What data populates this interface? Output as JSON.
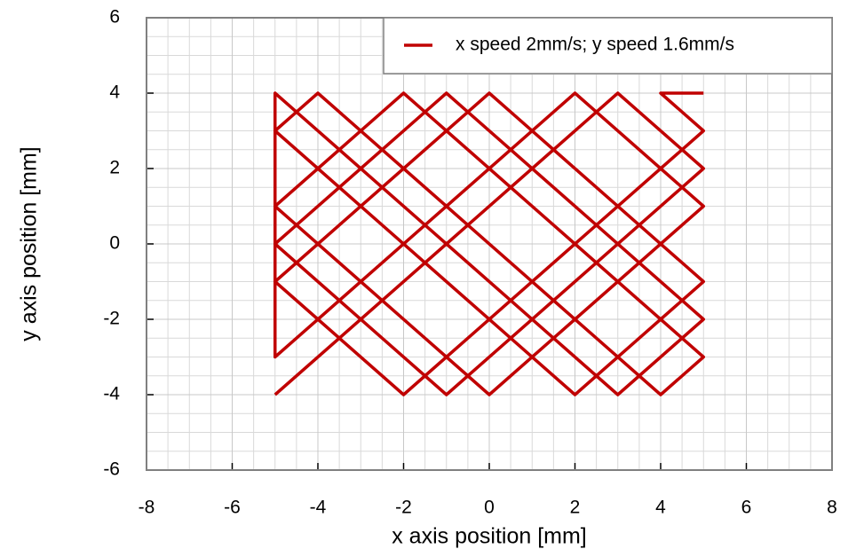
{
  "chart_data": {
    "type": "line",
    "x_label": "x axis position [mm]",
    "y_label": "y axis position [mm]",
    "series": [
      {
        "name": "x speed 2mm/s; y speed 1.6mm/s",
        "color": "#c00000",
        "x": [
          -5,
          3,
          5,
          -1,
          -5,
          -1,
          5,
          3,
          -5,
          -5,
          2,
          5,
          0,
          -5,
          -2,
          5,
          4,
          -4,
          -5,
          2,
          5,
          0,
          -5,
          -2,
          5,
          4,
          5
        ],
        "values": [
          -4,
          4,
          2,
          -4,
          0,
          4,
          -2,
          -4,
          4,
          -3,
          4,
          1,
          -4,
          1,
          4,
          -3,
          -4,
          4,
          3,
          -4,
          -1,
          4,
          -1,
          -4,
          3,
          4,
          4
        ]
      }
    ],
    "xlim": [
      -8,
      8
    ],
    "xticks": [
      -8,
      -6,
      -4,
      -2,
      0,
      2,
      4,
      6,
      8
    ],
    "ylim": [
      -6,
      6
    ],
    "yticks": [
      -6,
      -4,
      -2,
      0,
      2,
      4,
      6
    ],
    "grid": true,
    "legend": "top-right"
  }
}
